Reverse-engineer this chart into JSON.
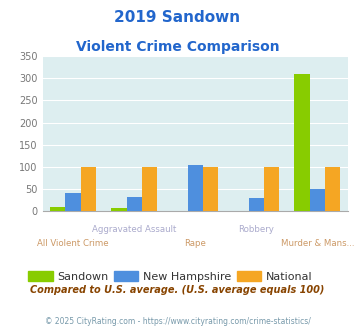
{
  "title_line1": "2019 Sandown",
  "title_line2": "Violent Crime Comparison",
  "categories": [
    "All Violent Crime",
    "Aggravated Assault",
    "Rape",
    "Robbery",
    "Murder & Mans..."
  ],
  "sandown": [
    10,
    7,
    0,
    0,
    310
  ],
  "new_hampshire": [
    42,
    33,
    104,
    29,
    50
  ],
  "national": [
    100,
    100,
    100,
    100,
    100
  ],
  "bar_color_sandown": "#88cc00",
  "bar_color_nh": "#4e8fde",
  "bar_color_national": "#f5a623",
  "background_color": "#ddeef0",
  "ylim": [
    0,
    350
  ],
  "yticks": [
    0,
    50,
    100,
    150,
    200,
    250,
    300,
    350
  ],
  "legend_labels": [
    "Sandown",
    "New Hampshire",
    "National"
  ],
  "footnote1": "Compared to U.S. average. (U.S. average equals 100)",
  "footnote2": "© 2025 CityRating.com - https://www.cityrating.com/crime-statistics/",
  "title_color": "#2266cc",
  "axis_label_color_upper": "#aaaacc",
  "axis_label_color_lower": "#cc9966",
  "footnote1_color": "#884400",
  "footnote2_color": "#7799aa",
  "tick_color": "#777777"
}
